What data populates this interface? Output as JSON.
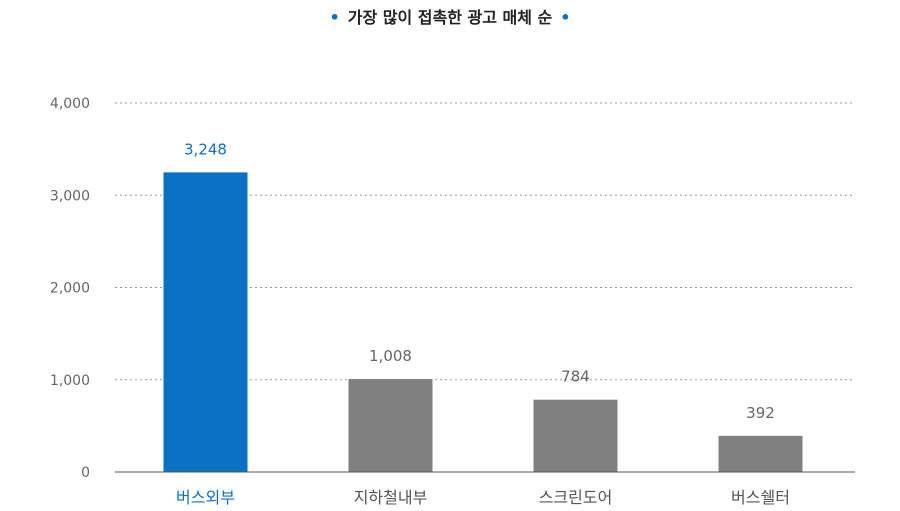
{
  "chart_data": {
    "type": "bar",
    "title": "가장 많이 접촉한 광고 매체 순",
    "title_bullet": "•",
    "categories": [
      "버스외부",
      "지하철내부",
      "스크린도어",
      "버스쉘터"
    ],
    "values": [
      3248,
      1008,
      784,
      392
    ],
    "value_labels": [
      "3,248",
      "1,008",
      "784",
      "392"
    ],
    "yticks": [
      0,
      1000,
      2000,
      3000,
      4000
    ],
    "ytick_labels": [
      "0",
      "1,000",
      "2,000",
      "3,000",
      "4,000"
    ],
    "ylim": [
      0,
      4000
    ],
    "xlabel": "",
    "ylabel": "",
    "grid": true,
    "highlight_index": 0,
    "colors": {
      "highlight": "#0a72c4",
      "default": "#808080",
      "bullet": "#0a72c4",
      "grid": "#9a9a9a",
      "axis": "#555555",
      "tick_text": "#666666",
      "category_text": "#555555",
      "value_text": "#666666"
    }
  }
}
